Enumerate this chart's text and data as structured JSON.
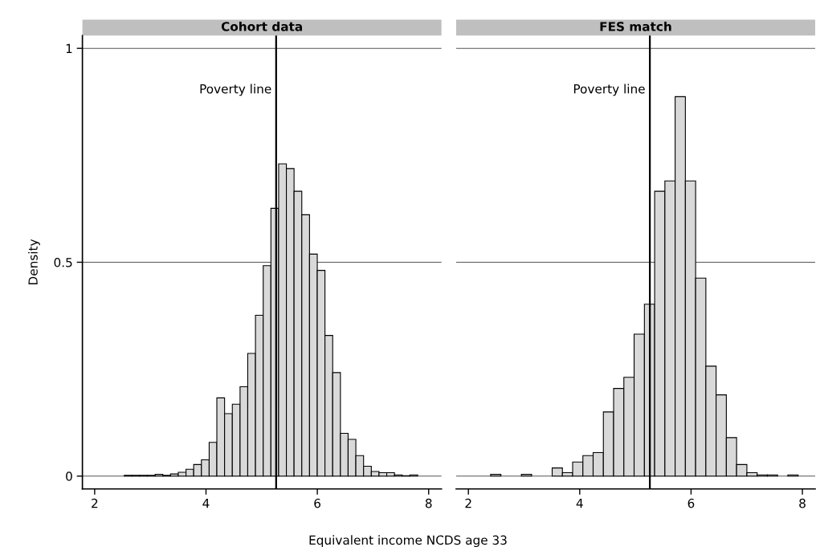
{
  "chart_data": [
    {
      "type": "histogram",
      "title": "Cohort data",
      "ylabel": "Density",
      "xlabel": "Equivalent income NCDS age 33",
      "bins": [
        2.531,
        2.67,
        2.808,
        2.947,
        3.086,
        3.225,
        3.363,
        3.502,
        3.641,
        3.779,
        3.918,
        4.057,
        4.195,
        4.334,
        4.473,
        4.612,
        4.75,
        4.889,
        5.028,
        5.166,
        5.305,
        5.444,
        5.582,
        5.721,
        5.86,
        5.999,
        6.137,
        6.276,
        6.415,
        6.553,
        6.692,
        6.831,
        6.97,
        7.108,
        7.247,
        7.386,
        7.524,
        7.663,
        7.802
      ],
      "values": [
        0.002,
        0.002,
        0.002,
        0.002,
        0.004,
        0.002,
        0.005,
        0.009,
        0.016,
        0.027,
        0.038,
        0.079,
        0.183,
        0.146,
        0.168,
        0.209,
        0.287,
        0.376,
        0.492,
        0.626,
        0.73,
        0.719,
        0.666,
        0.611,
        0.519,
        0.481,
        0.329,
        0.242,
        0.1,
        0.086,
        0.048,
        0.023,
        0.011,
        0.008,
        0.008,
        0.003,
        0.001,
        0.003
      ],
      "color": "#d9d9d9",
      "xlim": [
        1.78,
        8.23
      ],
      "ylim": [
        -0.03,
        1.03
      ],
      "xticks": [
        2,
        4,
        6,
        8
      ],
      "yticks": [
        0,
        0.5,
        1
      ],
      "grid": "y",
      "ref_lines": [
        {
          "axis": "x",
          "value": 5.26,
          "label": "Poverty line",
          "color": "#000000"
        }
      ]
    },
    {
      "type": "histogram",
      "title": "FES match",
      "bins": [
        2.4,
        2.584,
        2.768,
        2.952,
        3.136,
        3.321,
        3.505,
        3.689,
        3.873,
        4.057,
        4.241,
        4.425,
        4.609,
        4.793,
        4.977,
        5.162,
        5.346,
        5.53,
        5.714,
        5.898,
        6.082,
        6.266,
        6.45,
        6.634,
        6.818,
        7.003,
        7.187,
        7.371,
        7.555,
        7.739,
        7.923
      ],
      "values": [
        0.004,
        null,
        null,
        0.004,
        null,
        null,
        0.019,
        0.008,
        0.033,
        0.048,
        0.055,
        0.15,
        0.205,
        0.231,
        0.332,
        0.402,
        0.666,
        0.69,
        0.887,
        0.69,
        0.463,
        0.257,
        0.19,
        0.09,
        0.027,
        0.008,
        0.003,
        0.003,
        null,
        0.003
      ],
      "color": "#d9d9d9",
      "xlim": [
        1.78,
        8.23
      ],
      "ylim": [
        -0.03,
        1.03
      ],
      "xticks": [
        2,
        4,
        6,
        8
      ],
      "yticks": [
        0,
        0.5,
        1
      ],
      "grid": "y",
      "tick_labels": "x",
      "ref_lines": [
        {
          "axis": "x",
          "value": 5.26,
          "label": "Poverty line",
          "color": "#000000"
        }
      ]
    }
  ]
}
